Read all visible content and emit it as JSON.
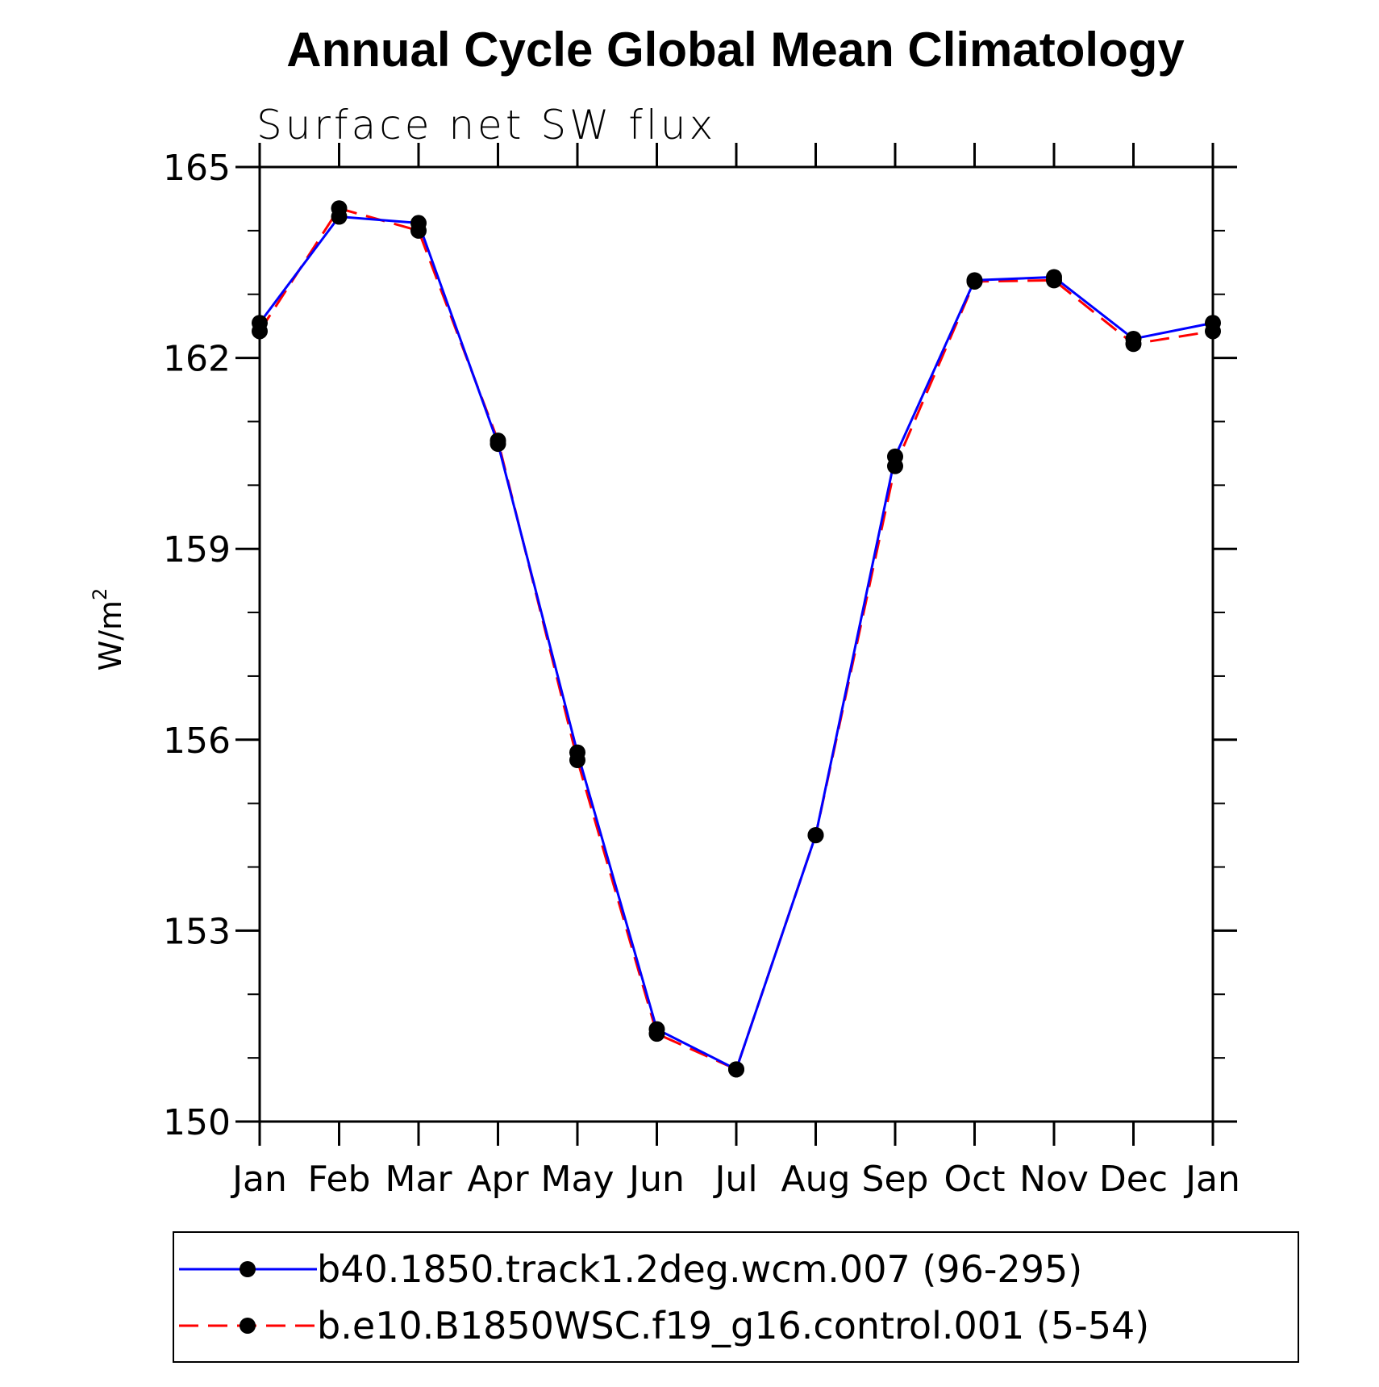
{
  "chart_data": {
    "type": "line",
    "title": "Annual Cycle Global Mean Climatology",
    "subtitle": "Surface net SW flux",
    "ylabel": "W/m",
    "ylabel_superscript": "2",
    "xlabel": "",
    "ylim": [
      150,
      165
    ],
    "yticks": [
      150,
      153,
      156,
      159,
      162,
      165
    ],
    "ytick_labels": [
      "150",
      "153",
      "156",
      "159",
      "162",
      "165"
    ],
    "categories": [
      "Jan",
      "Feb",
      "Mar",
      "Apr",
      "May",
      "Jun",
      "Jul",
      "Aug",
      "Sep",
      "Oct",
      "Nov",
      "Dec",
      "Jan"
    ],
    "grid": false,
    "legend_position": "bottom",
    "series": [
      {
        "name": "b40.1850.track1.2deg.wcm.007 (96-295)",
        "color": "#0000ff",
        "dash": "solid",
        "marker": "circle",
        "values": [
          162.55,
          164.22,
          164.12,
          160.65,
          155.8,
          151.45,
          150.82,
          154.5,
          160.45,
          163.22,
          163.27,
          162.3,
          162.55
        ]
      },
      {
        "name": "b.e10.B1850WSC.f19_g16.control.001 (5-54)",
        "color": "#ff0000",
        "dash": "dashed",
        "marker": "circle",
        "values": [
          162.42,
          164.35,
          164.0,
          160.7,
          155.68,
          151.38,
          150.82,
          154.5,
          160.3,
          163.2,
          163.22,
          162.22,
          162.42
        ]
      }
    ]
  }
}
